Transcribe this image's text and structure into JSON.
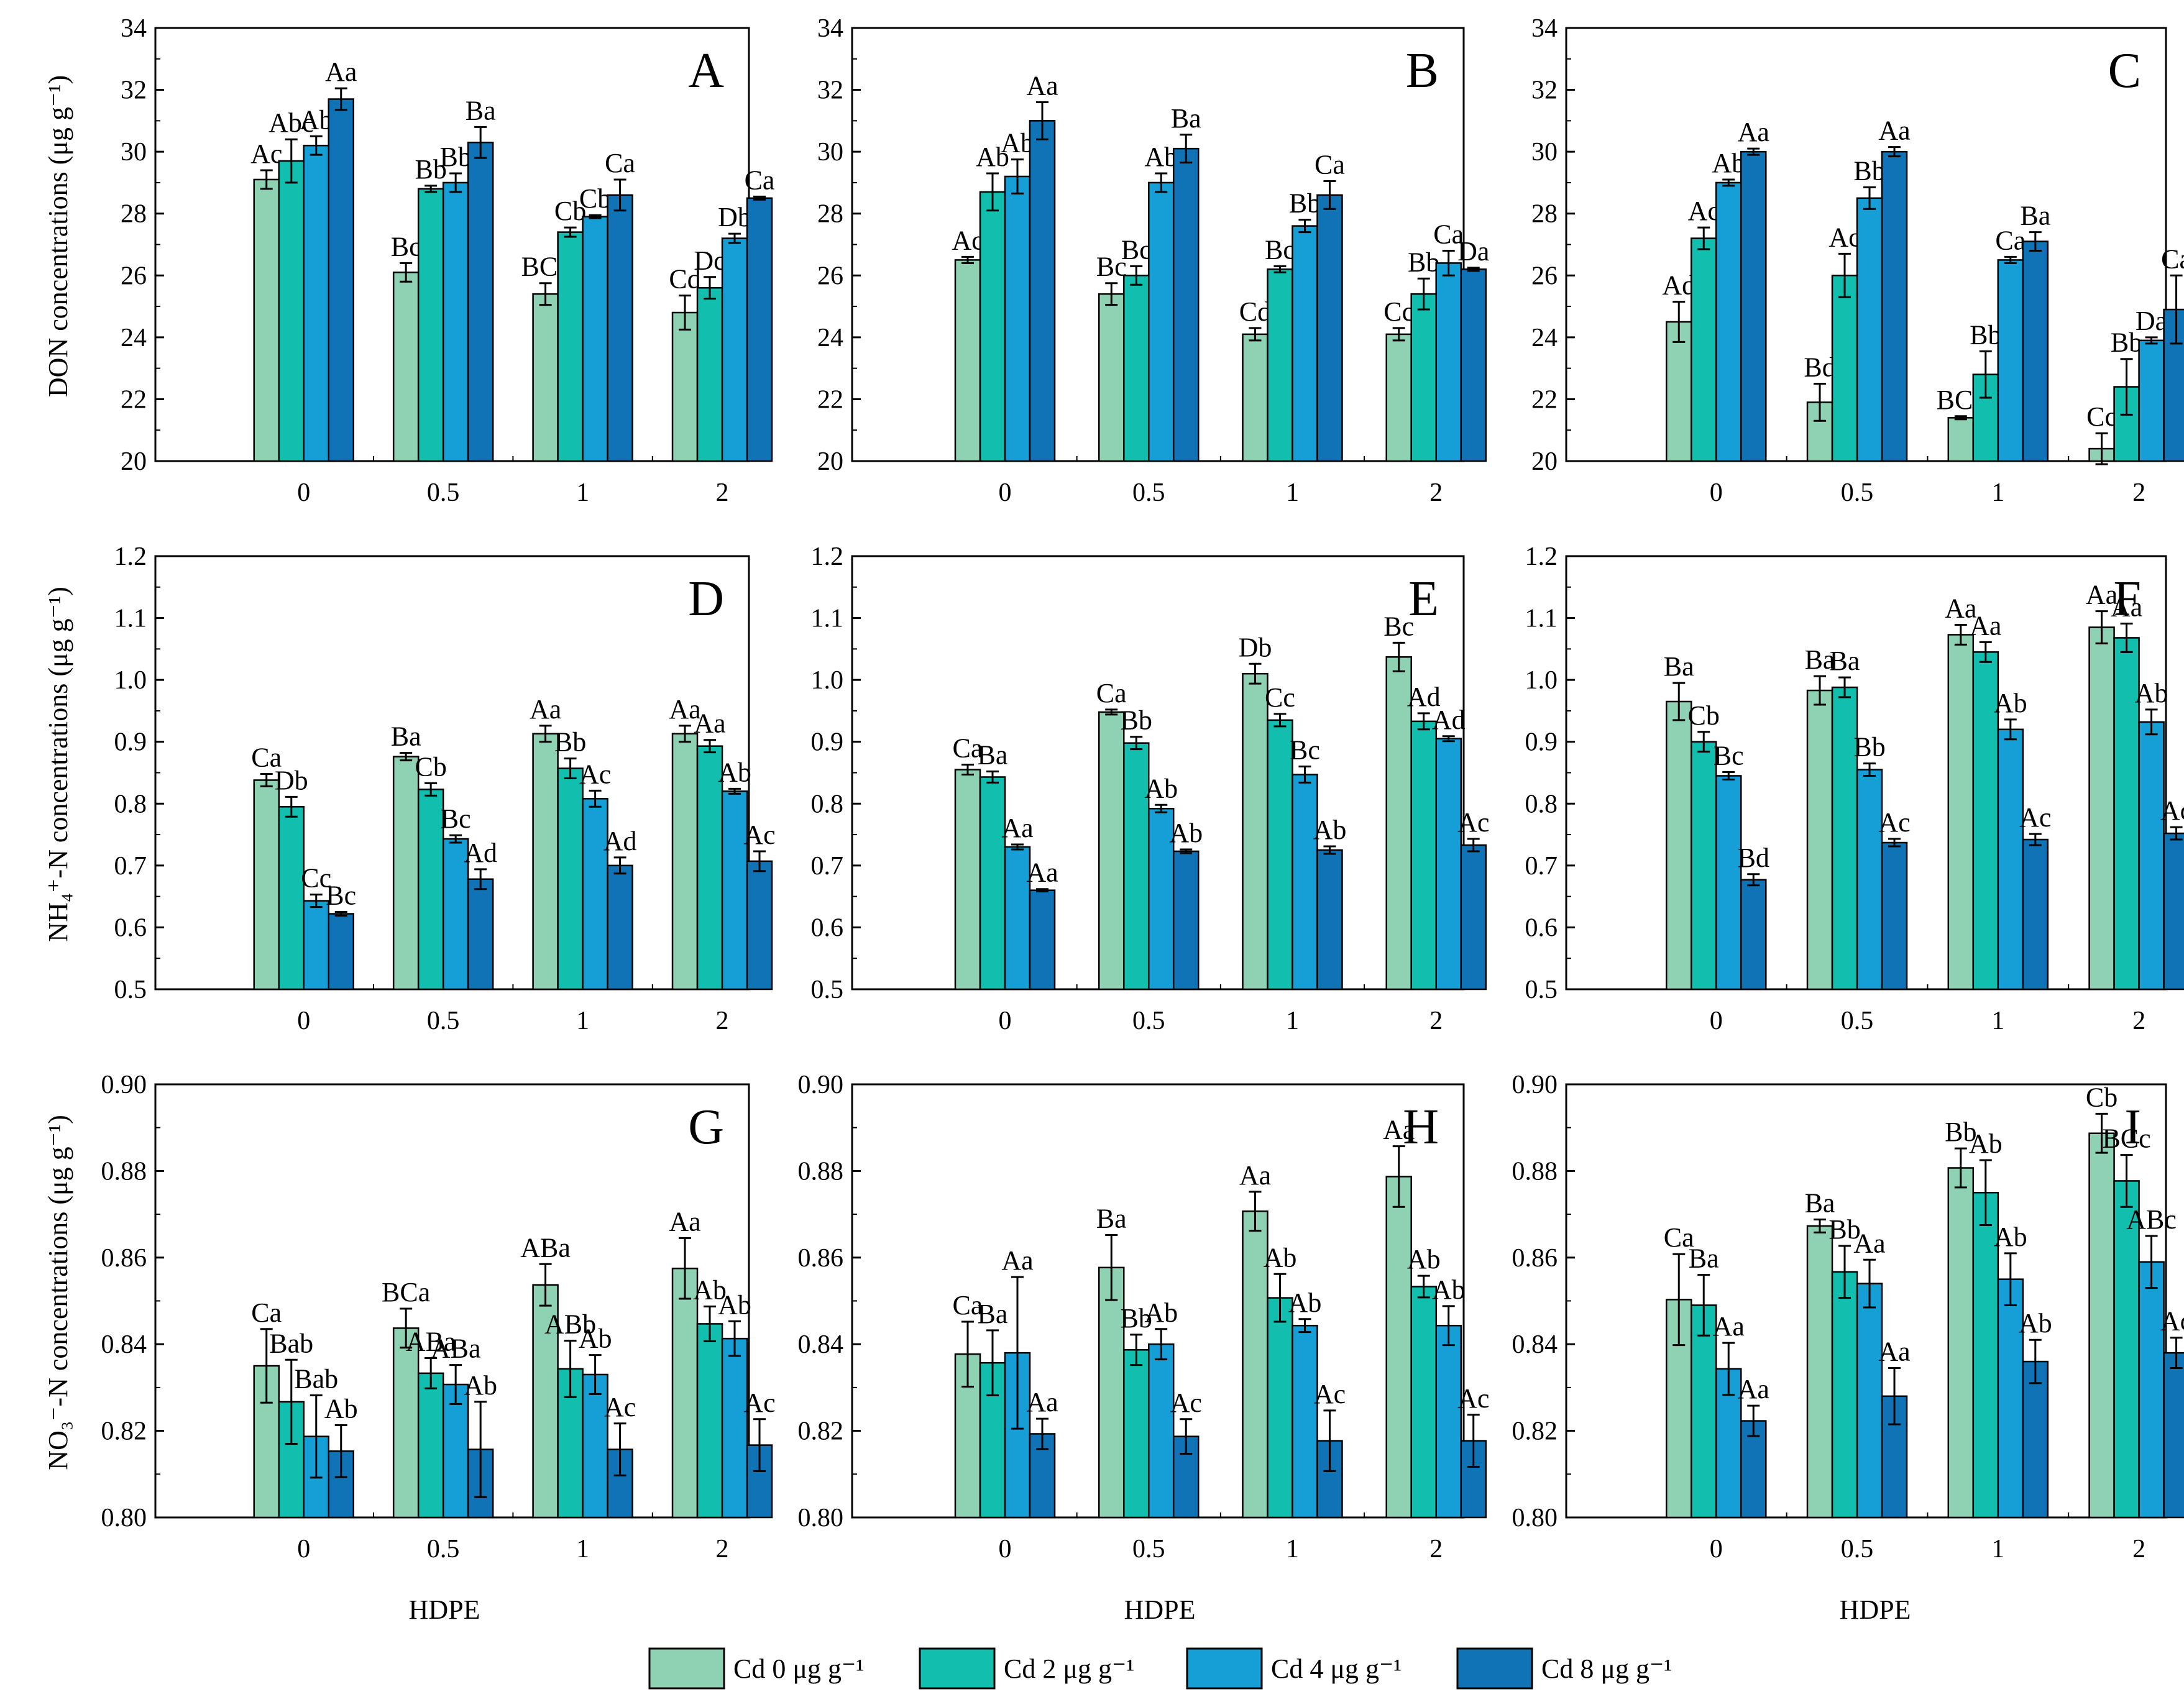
{
  "legend": {
    "items": [
      {
        "label": "Cd 0 μg g⁻¹",
        "color": "#8ed1b3"
      },
      {
        "label": "Cd 2 μg g⁻¹",
        "color": "#12bfae"
      },
      {
        "label": "Cd 4 μg g⁻¹",
        "color": "#169fd6"
      },
      {
        "label": "Cd 8 μg g⁻¹",
        "color": "#0f73b5"
      }
    ]
  },
  "xlabels": [
    "HDPE",
    "HDPE",
    "HDPE"
  ],
  "ylabels": [
    "DON concentrations (μg g⁻¹)",
    "NH₄⁺-N concentrations (μg g⁻¹)",
    "NO₃⁻-N concentrations (μg g⁻¹)"
  ],
  "chart_data": [
    {
      "type": "bar",
      "panel": "A",
      "row": 0,
      "col": 0,
      "ylim": [
        20,
        34
      ],
      "yticks": [
        "20",
        "22",
        "24",
        "26",
        "28",
        "30",
        "32",
        "34"
      ],
      "categories": [
        "0",
        "0.5",
        "1",
        "2"
      ],
      "series": [
        {
          "name": "Cd 0",
          "values": [
            29.1,
            26.1,
            25.4,
            24.8
          ],
          "errors": [
            0.3,
            0.3,
            0.35,
            0.55
          ],
          "labels": [
            "Ac",
            "Bc",
            "BCc",
            "Cd"
          ]
        },
        {
          "name": "Cd 2",
          "values": [
            29.7,
            28.8,
            27.4,
            25.6
          ],
          "errors": [
            0.7,
            0.1,
            0.15,
            0.35
          ],
          "labels": [
            "Abc",
            "Bb",
            "Cb",
            "Dc"
          ]
        },
        {
          "name": "Cd 4",
          "values": [
            30.2,
            29.0,
            27.9,
            27.2
          ],
          "errors": [
            0.3,
            0.3,
            0.05,
            0.15
          ],
          "labels": [
            "Ab",
            "Bb",
            "Cb",
            "Db"
          ]
        },
        {
          "name": "Cd 8",
          "values": [
            31.7,
            30.3,
            28.6,
            28.5
          ],
          "errors": [
            0.35,
            0.5,
            0.5,
            0.05
          ],
          "labels": [
            "Aa",
            "Ba",
            "Ca",
            "Ca"
          ]
        }
      ]
    },
    {
      "type": "bar",
      "panel": "B",
      "row": 0,
      "col": 1,
      "ylim": [
        20,
        34
      ],
      "yticks": [
        "20",
        "22",
        "24",
        "26",
        "28",
        "30",
        "32",
        "34"
      ],
      "categories": [
        "0",
        "0.5",
        "1",
        "2"
      ],
      "series": [
        {
          "name": "Cd 0",
          "values": [
            26.5,
            25.4,
            24.1,
            24.1
          ],
          "errors": [
            0.1,
            0.35,
            0.2,
            0.2
          ],
          "labels": [
            "Ac",
            "Bc",
            "Cd",
            "Cc"
          ]
        },
        {
          "name": "Cd 2",
          "values": [
            28.7,
            26.0,
            26.2,
            25.4
          ],
          "errors": [
            0.6,
            0.3,
            0.1,
            0.5
          ],
          "labels": [
            "Ab",
            "Bc",
            "Bc",
            "Bb"
          ]
        },
        {
          "name": "Cd 4",
          "values": [
            29.2,
            29.0,
            27.6,
            26.4
          ],
          "errors": [
            0.55,
            0.3,
            0.2,
            0.4
          ],
          "labels": [
            "Ab",
            "Ab",
            "Bb",
            "Ca"
          ]
        },
        {
          "name": "Cd 8",
          "values": [
            31.0,
            30.1,
            28.6,
            26.2
          ],
          "errors": [
            0.6,
            0.45,
            0.45,
            0.05
          ],
          "labels": [
            "Aa",
            "Ba",
            "Ca",
            "Da"
          ]
        }
      ]
    },
    {
      "type": "bar",
      "panel": "C",
      "row": 0,
      "col": 2,
      "ylim": [
        20,
        34
      ],
      "yticks": [
        "20",
        "22",
        "24",
        "26",
        "28",
        "30",
        "32",
        "34"
      ],
      "categories": [
        "0",
        "0.5",
        "1",
        "2"
      ],
      "series": [
        {
          "name": "Cd 0",
          "values": [
            24.5,
            21.9,
            21.4,
            20.4
          ],
          "errors": [
            0.65,
            0.6,
            0.05,
            0.5
          ],
          "labels": [
            "Ad",
            "Bd",
            "BCc",
            "Cc"
          ]
        },
        {
          "name": "Cd 2",
          "values": [
            27.2,
            26.0,
            22.8,
            22.4
          ],
          "errors": [
            0.35,
            0.7,
            0.75,
            0.9
          ],
          "labels": [
            "Ac",
            "Ac",
            "Bb",
            "Bb"
          ]
        },
        {
          "name": "Cd 4",
          "values": [
            29.0,
            28.5,
            26.5,
            23.9
          ],
          "errors": [
            0.1,
            0.35,
            0.1,
            0.1
          ],
          "labels": [
            "Ab",
            "Bb",
            "Ca",
            "Da"
          ]
        },
        {
          "name": "Cd 8",
          "values": [
            30.0,
            30.0,
            27.1,
            24.9
          ],
          "errors": [
            0.1,
            0.15,
            0.3,
            1.1
          ],
          "labels": [
            "Aa",
            "Aa",
            "Ba",
            "Ca"
          ]
        }
      ]
    },
    {
      "type": "bar",
      "panel": "D",
      "row": 1,
      "col": 0,
      "ylim": [
        0.5,
        1.2
      ],
      "yticks": [
        "0.5",
        "0.6",
        "0.7",
        "0.8",
        "0.9",
        "1.0",
        "1.1",
        "1.2"
      ],
      "categories": [
        "0",
        "0.5",
        "1",
        "2"
      ],
      "series": [
        {
          "name": "Cd 0",
          "values": [
            0.838,
            0.876,
            0.913,
            0.913
          ],
          "errors": [
            0.01,
            0.006,
            0.013,
            0.013
          ],
          "labels": [
            "Ca",
            "Ba",
            "Aa",
            "Aa"
          ]
        },
        {
          "name": "Cd 2",
          "values": [
            0.795,
            0.823,
            0.857,
            0.893
          ],
          "errors": [
            0.016,
            0.01,
            0.016,
            0.01
          ],
          "labels": [
            "Db",
            "Cb",
            "Bb",
            "Aa"
          ]
        },
        {
          "name": "Cd 4",
          "values": [
            0.643,
            0.743,
            0.808,
            0.82
          ],
          "errors": [
            0.01,
            0.006,
            0.013,
            0.004
          ],
          "labels": [
            "Cc",
            "Bc",
            "Ac",
            "Ab"
          ]
        },
        {
          "name": "Cd 8",
          "values": [
            0.622,
            0.678,
            0.7,
            0.707
          ],
          "errors": [
            0.003,
            0.016,
            0.013,
            0.016
          ],
          "labels": [
            "Bc",
            "Ad",
            "Ad",
            "Ac"
          ]
        }
      ]
    },
    {
      "type": "bar",
      "panel": "E",
      "row": 1,
      "col": 1,
      "ylim": [
        0.5,
        1.2
      ],
      "yticks": [
        "0.5",
        "0.6",
        "0.7",
        "0.8",
        "0.9",
        "1.0",
        "1.1",
        "1.2"
      ],
      "categories": [
        "0",
        "0.5",
        "1",
        "2"
      ],
      "series": [
        {
          "name": "Cd 0",
          "values": [
            0.855,
            0.948,
            1.01,
            1.037
          ],
          "errors": [
            0.008,
            0.004,
            0.016,
            0.023
          ],
          "labels": [
            "Ca",
            "Ca",
            "Db",
            "Bc"
          ]
        },
        {
          "name": "Cd 2",
          "values": [
            0.843,
            0.898,
            0.935,
            0.933
          ],
          "errors": [
            0.009,
            0.01,
            0.01,
            0.013
          ],
          "labels": [
            "Ba",
            "Bb",
            "Cc",
            "Ad"
          ]
        },
        {
          "name": "Cd 4",
          "values": [
            0.73,
            0.792,
            0.847,
            0.905
          ],
          "errors": [
            0.004,
            0.006,
            0.013,
            0.004
          ],
          "labels": [
            "Aa",
            "Ab",
            "Bc",
            "Ad"
          ]
        },
        {
          "name": "Cd 8",
          "values": [
            0.66,
            0.723,
            0.725,
            0.733
          ],
          "errors": [
            0.002,
            0.003,
            0.006,
            0.01
          ],
          "labels": [
            "Aa",
            "Ab",
            "Ab",
            "Ac"
          ]
        }
      ]
    },
    {
      "type": "bar",
      "panel": "F",
      "row": 1,
      "col": 2,
      "ylim": [
        0.5,
        1.2
      ],
      "yticks": [
        "0.5",
        "0.6",
        "0.7",
        "0.8",
        "0.9",
        "1.0",
        "1.1",
        "1.2"
      ],
      "categories": [
        "0",
        "0.5",
        "1",
        "2"
      ],
      "series": [
        {
          "name": "Cd 0",
          "values": [
            0.965,
            0.983,
            1.073,
            1.085
          ],
          "errors": [
            0.03,
            0.023,
            0.016,
            0.026
          ],
          "labels": [
            "Ba",
            "Ba",
            "Aa",
            "Aa"
          ]
        },
        {
          "name": "Cd 2",
          "values": [
            0.9,
            0.988,
            1.045,
            1.068
          ],
          "errors": [
            0.016,
            0.016,
            0.016,
            0.023
          ],
          "labels": [
            "Cb",
            "Ba",
            "Aa",
            "Aa"
          ]
        },
        {
          "name": "Cd 4",
          "values": [
            0.845,
            0.855,
            0.92,
            0.932
          ],
          "errors": [
            0.006,
            0.01,
            0.016,
            0.02
          ],
          "labels": [
            "Bc",
            "Bb",
            "Ab",
            "Ab"
          ]
        },
        {
          "name": "Cd 8",
          "values": [
            0.677,
            0.737,
            0.742,
            0.752
          ],
          "errors": [
            0.009,
            0.006,
            0.009,
            0.01
          ],
          "labels": [
            "Bd",
            "Ac",
            "Ac",
            "Ac"
          ]
        }
      ]
    },
    {
      "type": "bar",
      "panel": "G",
      "row": 2,
      "col": 0,
      "ylim": [
        0.8,
        0.9
      ],
      "yticks": [
        "0.80",
        "0.82",
        "0.84",
        "0.86",
        "0.88",
        "0.90"
      ],
      "categories": [
        "0",
        "0.5",
        "1",
        "2"
      ],
      "series": [
        {
          "name": "Cd 0",
          "values": [
            0.835,
            0.8437,
            0.8537,
            0.8575
          ],
          "errors": [
            0.0085,
            0.0045,
            0.0048,
            0.007
          ],
          "labels": [
            "Ca",
            "BCa",
            "ABa",
            "Aa"
          ]
        },
        {
          "name": "Cd 2",
          "values": [
            0.8267,
            0.8333,
            0.8343,
            0.8447
          ],
          "errors": [
            0.0097,
            0.0035,
            0.0065,
            0.004
          ],
          "labels": [
            "Bab",
            "ABa",
            "ABb",
            "Ab"
          ]
        },
        {
          "name": "Cd 4",
          "values": [
            0.8187,
            0.8307,
            0.833,
            0.8413
          ],
          "errors": [
            0.0095,
            0.0045,
            0.0045,
            0.004
          ],
          "labels": [
            "Bab",
            "ABa",
            "Ab",
            "Ab"
          ]
        },
        {
          "name": "Cd 8",
          "values": [
            0.8153,
            0.8157,
            0.8157,
            0.8167
          ],
          "errors": [
            0.006,
            0.011,
            0.006,
            0.006
          ],
          "labels": [
            "Ab",
            "Ab",
            "Ac",
            "Ac"
          ]
        }
      ]
    },
    {
      "type": "bar",
      "panel": "H",
      "row": 2,
      "col": 1,
      "ylim": [
        0.8,
        0.9
      ],
      "yticks": [
        "0.80",
        "0.82",
        "0.84",
        "0.86",
        "0.88",
        "0.90"
      ],
      "categories": [
        "0",
        "0.5",
        "1",
        "2"
      ],
      "series": [
        {
          "name": "Cd 0",
          "values": [
            0.8377,
            0.8577,
            0.8707,
            0.8787
          ],
          "errors": [
            0.0075,
            0.0075,
            0.0045,
            0.007
          ],
          "labels": [
            "Ca",
            "Ba",
            "Aa",
            "Aa"
          ]
        },
        {
          "name": "Cd 2",
          "values": [
            0.8357,
            0.8387,
            0.8507,
            0.8533
          ],
          "errors": [
            0.0075,
            0.0035,
            0.0055,
            0.0025
          ],
          "labels": [
            "Ba",
            "Bb",
            "Ab",
            "Ab"
          ]
        },
        {
          "name": "Cd 4",
          "values": [
            0.838,
            0.84,
            0.8443,
            0.8443
          ],
          "errors": [
            0.0175,
            0.0035,
            0.0015,
            0.0045
          ],
          "labels": [
            "Aa",
            "Ab",
            "Ab",
            "Ab"
          ]
        },
        {
          "name": "Cd 8",
          "values": [
            0.8193,
            0.8187,
            0.8177,
            0.8177
          ],
          "errors": [
            0.0035,
            0.004,
            0.007,
            0.006
          ],
          "labels": [
            "Aa",
            "Ac",
            "Ac",
            "Ac"
          ]
        }
      ]
    },
    {
      "type": "bar",
      "panel": "I",
      "row": 2,
      "col": 2,
      "ylim": [
        0.8,
        0.9
      ],
      "yticks": [
        "0.80",
        "0.82",
        "0.84",
        "0.86",
        "0.88",
        "0.90"
      ],
      "categories": [
        "0",
        "0.5",
        "1",
        "2"
      ],
      "series": [
        {
          "name": "Cd 0",
          "values": [
            0.8503,
            0.8673,
            0.8807,
            0.8887
          ],
          "errors": [
            0.0105,
            0.0015,
            0.0045,
            0.0045
          ],
          "labels": [
            "Ca",
            "Ba",
            "Bb",
            "Cb"
          ]
        },
        {
          "name": "Cd 2",
          "values": [
            0.849,
            0.8567,
            0.875,
            0.8777
          ],
          "errors": [
            0.007,
            0.006,
            0.0075,
            0.006
          ],
          "labels": [
            "Ba",
            "Bb",
            "Ab",
            "BCc"
          ]
        },
        {
          "name": "Cd 4",
          "values": [
            0.8343,
            0.854,
            0.855,
            0.859
          ],
          "errors": [
            0.006,
            0.0055,
            0.006,
            0.006
          ],
          "labels": [
            "Aa",
            "Aa",
            "Ab",
            "ABc"
          ]
        },
        {
          "name": "Cd 8",
          "values": [
            0.8223,
            0.828,
            0.836,
            0.838
          ],
          "errors": [
            0.0035,
            0.0065,
            0.005,
            0.0035
          ],
          "labels": [
            "Aa",
            "Aa",
            "Ab",
            "Ac"
          ]
        }
      ]
    }
  ]
}
